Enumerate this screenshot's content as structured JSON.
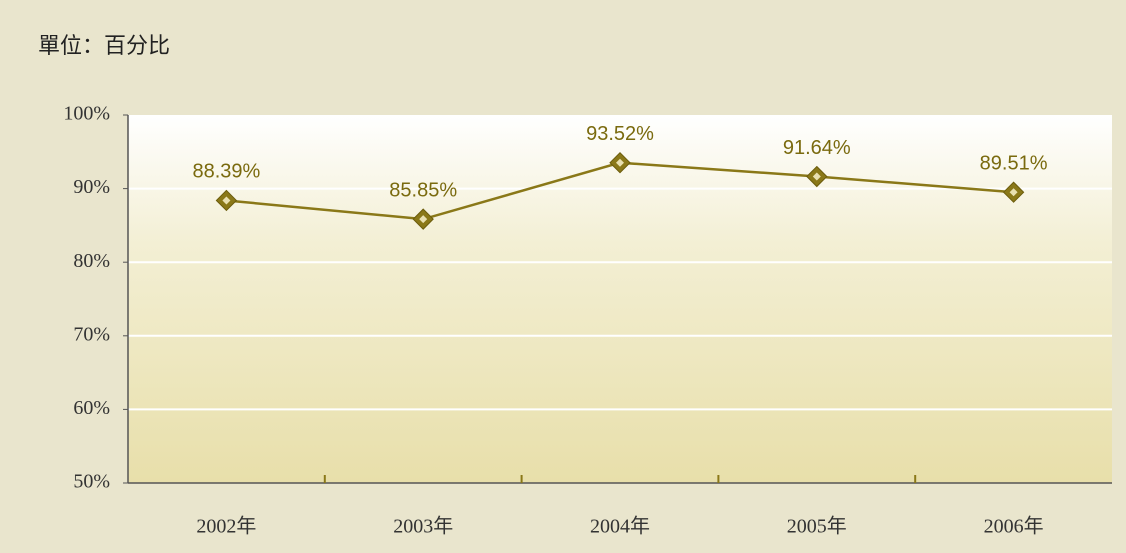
{
  "chart_data": {
    "type": "line",
    "subtitle": "單位：百分比",
    "categories": [
      "2002年",
      "2003年",
      "2004年",
      "2005年",
      "2006年"
    ],
    "values": [
      88.39,
      85.85,
      93.52,
      91.64,
      89.51
    ],
    "value_labels": [
      "88.39%",
      "85.85%",
      "93.52%",
      "91.64%",
      "89.51%"
    ],
    "color": "#8a7818",
    "ylim": [
      50,
      100
    ],
    "yticks": [
      {
        "value": 50,
        "label": "50%"
      },
      {
        "value": 60,
        "label": "60%"
      },
      {
        "value": 70,
        "label": "70%"
      },
      {
        "value": 80,
        "label": "80%"
      },
      {
        "value": 90,
        "label": "90%"
      },
      {
        "value": 100,
        "label": "100%"
      }
    ],
    "grid": true
  }
}
